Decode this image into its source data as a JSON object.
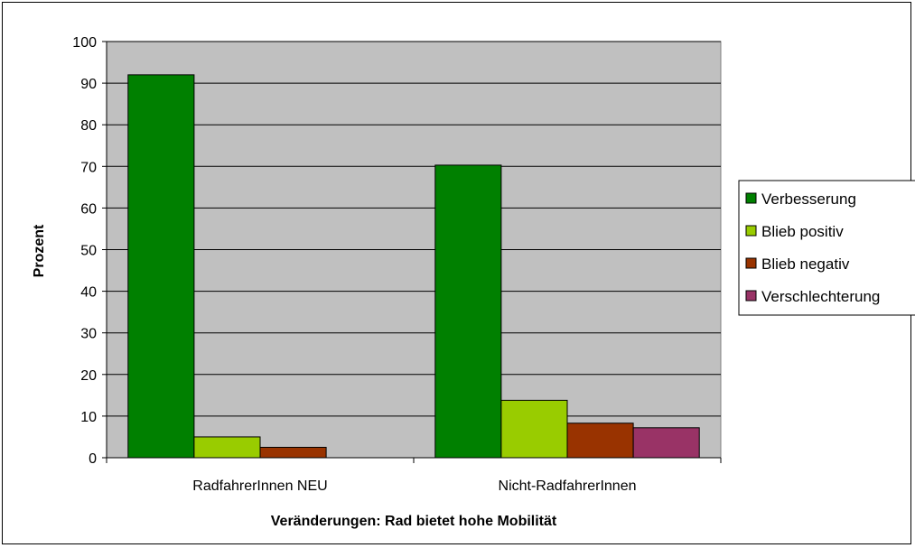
{
  "chart_data": {
    "type": "bar",
    "title": "",
    "xlabel": "Veränderungen: Rad bietet hohe Mobilität",
    "ylabel": "Prozent",
    "ylim": [
      0,
      100
    ],
    "yticks": [
      "0",
      "10",
      "20",
      "30",
      "40",
      "50",
      "60",
      "70",
      "80",
      "90",
      "100"
    ],
    "grid": "horizontal",
    "legend_position": "right",
    "categories": [
      "RadfahrerInnen NEU",
      "Nicht-RadfahrerInnen"
    ],
    "series": [
      {
        "name": "Verbesserung",
        "color": "#008000",
        "values": [
          92,
          70.3
        ]
      },
      {
        "name": "Blieb positiv",
        "color": "#99cc00",
        "values": [
          5,
          13.8
        ]
      },
      {
        "name": "Blieb negativ",
        "color": "#993300",
        "values": [
          2.5,
          8.3
        ]
      },
      {
        "name": "Verschlechterung",
        "color": "#993366",
        "values": [
          0,
          7.2
        ]
      }
    ],
    "plot_background": "#c0c0c0"
  }
}
